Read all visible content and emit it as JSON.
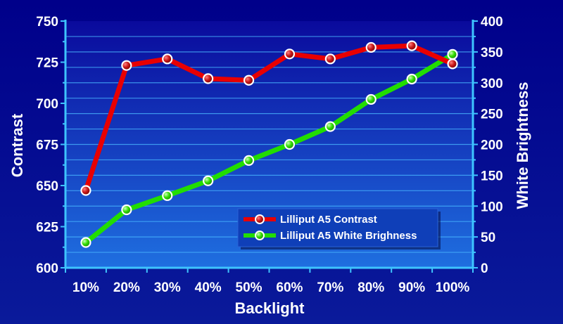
{
  "chart_data": {
    "type": "line",
    "title": "",
    "xlabel": "Backlight",
    "ylabel": "Contrast",
    "y2label": "White Brightness",
    "categories": [
      "10%",
      "20%",
      "30%",
      "40%",
      "50%",
      "60%",
      "70%",
      "80%",
      "90%",
      "100%"
    ],
    "ylim": [
      600,
      750
    ],
    "y_ticks": [
      "600",
      "625",
      "650",
      "675",
      "700",
      "725",
      "750"
    ],
    "y2lim": [
      0,
      400
    ],
    "y2_ticks": [
      "0",
      "50",
      "100",
      "150",
      "200",
      "250",
      "300",
      "350",
      "400"
    ],
    "grid": true,
    "legend_position": "bottom-right",
    "series": [
      {
        "name": "Lilliput A5 Contrast",
        "axis": "left",
        "color": "#e80000",
        "marker_color": "#b01010",
        "values": [
          647,
          723,
          727,
          715,
          714,
          730,
          727,
          734,
          735,
          724
        ]
      },
      {
        "name": "Lilliput A5 White Brighness",
        "axis": "right",
        "color": "#22dd00",
        "marker_color": "#22cc00",
        "values": [
          41,
          94,
          117,
          141,
          174,
          200,
          229,
          273,
          306,
          346
        ]
      }
    ],
    "colors": {
      "background_top": "#00008a",
      "background_bottom": "#0a1a9a",
      "plot_top": "#0a0a9c",
      "plot_bottom": "#1f6fe0",
      "grid": "#49b7ff",
      "axis": "#3ec4ff",
      "text": "#ffffff"
    }
  }
}
